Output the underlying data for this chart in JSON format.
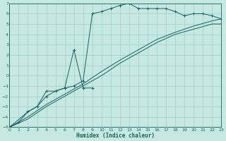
{
  "xlabel": "Humidex (Indice chaleur)",
  "bg_color": "#c5e8e0",
  "grid_color": "#9ecfca",
  "line_color": "#1a6060",
  "xlim": [
    0,
    23
  ],
  "ylim": [
    -5,
    7
  ],
  "xticks": [
    0,
    1,
    2,
    3,
    4,
    5,
    6,
    7,
    8,
    9,
    10,
    11,
    12,
    13,
    14,
    15,
    16,
    17,
    18,
    19,
    20,
    21,
    22,
    23
  ],
  "yticks": [
    -5,
    -4,
    -3,
    -2,
    -1,
    0,
    1,
    2,
    3,
    4,
    5,
    6,
    7
  ],
  "lines": [
    {
      "x": [
        0,
        1,
        2,
        3,
        4,
        5,
        6,
        7,
        8,
        9,
        10,
        11,
        12,
        13,
        14,
        15,
        16,
        17,
        18,
        19,
        20,
        21,
        22,
        23
      ],
      "y": [
        -5,
        -4.5,
        -3.5,
        -3,
        -2,
        -1.5,
        -1.2,
        -1.0,
        -0.5,
        6.0,
        6.2,
        6.5,
        6.8,
        7.0,
        6.5,
        6.5,
        6.5,
        6.5,
        6.2,
        5.8,
        6.0,
        6.0,
        5.8,
        5.5
      ],
      "marker": true
    },
    {
      "x": [
        0,
        2,
        3,
        4,
        5,
        6,
        7,
        8,
        9
      ],
      "y": [
        -5,
        -3.5,
        -3.0,
        -1.5,
        -1.5,
        -1.2,
        2.5,
        -1.2,
        -1.2
      ],
      "marker": true
    },
    {
      "x": [
        0,
        2,
        4,
        6,
        8,
        10,
        12,
        14,
        16,
        18,
        20,
        22,
        23
      ],
      "y": [
        -5,
        -4.0,
        -2.8,
        -1.8,
        -0.8,
        0.4,
        1.5,
        2.5,
        3.5,
        4.2,
        4.8,
        5.3,
        5.5
      ],
      "marker": false
    },
    {
      "x": [
        0,
        2,
        4,
        6,
        8,
        10,
        12,
        14,
        16,
        18,
        20,
        22,
        23
      ],
      "y": [
        -5,
        -4.2,
        -3.0,
        -2.0,
        -1.0,
        0.0,
        1.2,
        2.2,
        3.2,
        4.0,
        4.5,
        5.0,
        5.0
      ],
      "marker": false
    }
  ]
}
